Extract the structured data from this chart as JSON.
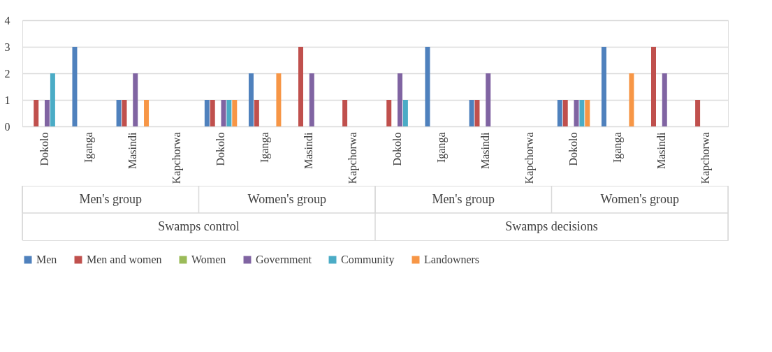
{
  "chart_data": {
    "type": "bar",
    "categories": [
      "Dokolo",
      "Iganga",
      "Masindi",
      "Kapchorwa",
      "Dokolo",
      "Iganga",
      "Masindi",
      "Kapchorwa",
      "Dokolo",
      "Iganga",
      "Masindi",
      "Kapchorwa",
      "Dokolo",
      "Iganga",
      "Masindi",
      "Kapchorwa"
    ],
    "series": [
      {
        "name": "Men",
        "color": "#4f81bd",
        "values": [
          0,
          3,
          1,
          0,
          1,
          2,
          0,
          0,
          0,
          3,
          1,
          0,
          1,
          3,
          0,
          0
        ]
      },
      {
        "name": "Men and women",
        "color": "#c0504d",
        "values": [
          1,
          0,
          1,
          0,
          1,
          1,
          3,
          1,
          1,
          0,
          1,
          0,
          1,
          0,
          3,
          1
        ]
      },
      {
        "name": "Women",
        "color": "#9bbb59",
        "values": [
          0,
          0,
          0,
          0,
          0,
          0,
          0,
          0,
          0,
          0,
          0,
          0,
          0,
          0,
          0,
          0
        ]
      },
      {
        "name": "Government",
        "color": "#8064a2",
        "values": [
          1,
          0,
          2,
          0,
          1,
          0,
          2,
          0,
          2,
          0,
          2,
          0,
          1,
          0,
          2,
          0
        ]
      },
      {
        "name": "Community",
        "color": "#4bacc6",
        "values": [
          2,
          0,
          0,
          0,
          1,
          0,
          0,
          0,
          1,
          0,
          0,
          0,
          1,
          0,
          0,
          0
        ]
      },
      {
        "name": "Landowners",
        "color": "#f79646",
        "values": [
          0,
          0,
          1,
          0,
          1,
          2,
          0,
          0,
          0,
          0,
          0,
          0,
          1,
          2,
          0,
          0
        ]
      }
    ],
    "annotations": [
      "Men's group",
      "Women's group",
      "Men's group",
      "Women's group",
      "Swamps control",
      "Swamps decisions"
    ],
    "ylim": [
      0,
      4
    ],
    "yticks": [
      0,
      1,
      2,
      3,
      4
    ],
    "grid": "y",
    "legend": "bottom"
  }
}
